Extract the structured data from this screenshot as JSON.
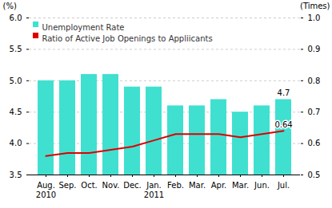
{
  "chart_data": {
    "type": "bar",
    "categories": [
      "Aug.",
      "Sep.",
      "Oct.",
      "Nov.",
      "Dec.",
      "Jan.",
      "Feb.",
      "Mar.",
      "Apr.",
      "Mar.",
      "Jun.",
      "Jul."
    ],
    "series": [
      {
        "name": "Unemployment Rate",
        "type": "bar",
        "color": "#40E0D0",
        "values": [
          5.0,
          5.0,
          5.1,
          5.1,
          4.9,
          4.9,
          4.6,
          4.6,
          4.7,
          4.5,
          4.6,
          4.7
        ]
      },
      {
        "name": "Ratio of Active Job Openings to Appliicants",
        "type": "line",
        "color": "#DD0000",
        "axis": "y2",
        "values": [
          0.56,
          0.57,
          0.57,
          0.58,
          0.59,
          0.61,
          0.63,
          0.63,
          0.63,
          0.62,
          0.63,
          0.64
        ]
      }
    ],
    "ylabel": "(%)",
    "y2label": "(Times)",
    "ylim": [
      3.5,
      6.0
    ],
    "yticks": [
      3.5,
      {
        "value": 4.0,
        "label": "4.0"
      },
      4.5,
      {
        "value": 5.0,
        "label": "5.0"
      },
      5.5,
      {
        "value": 6.0,
        "label": "6.0"
      }
    ],
    "y2lim": [
      0.5,
      1.0
    ],
    "y2ticks": [
      0.5,
      0.6,
      0.7,
      0.8,
      0.9,
      {
        "value": 1.0,
        "label": "1.0"
      }
    ],
    "grid": true,
    "legend": "top-left",
    "annotations": [
      {
        "text": "4.7",
        "x": 11,
        "y": 4.7
      },
      {
        "text": "0.64",
        "x": 11,
        "y": 0.64,
        "axis": "y2"
      },
      {
        "text": "2010",
        "x": 0
      },
      {
        "text": "2011",
        "x": 5
      }
    ]
  }
}
